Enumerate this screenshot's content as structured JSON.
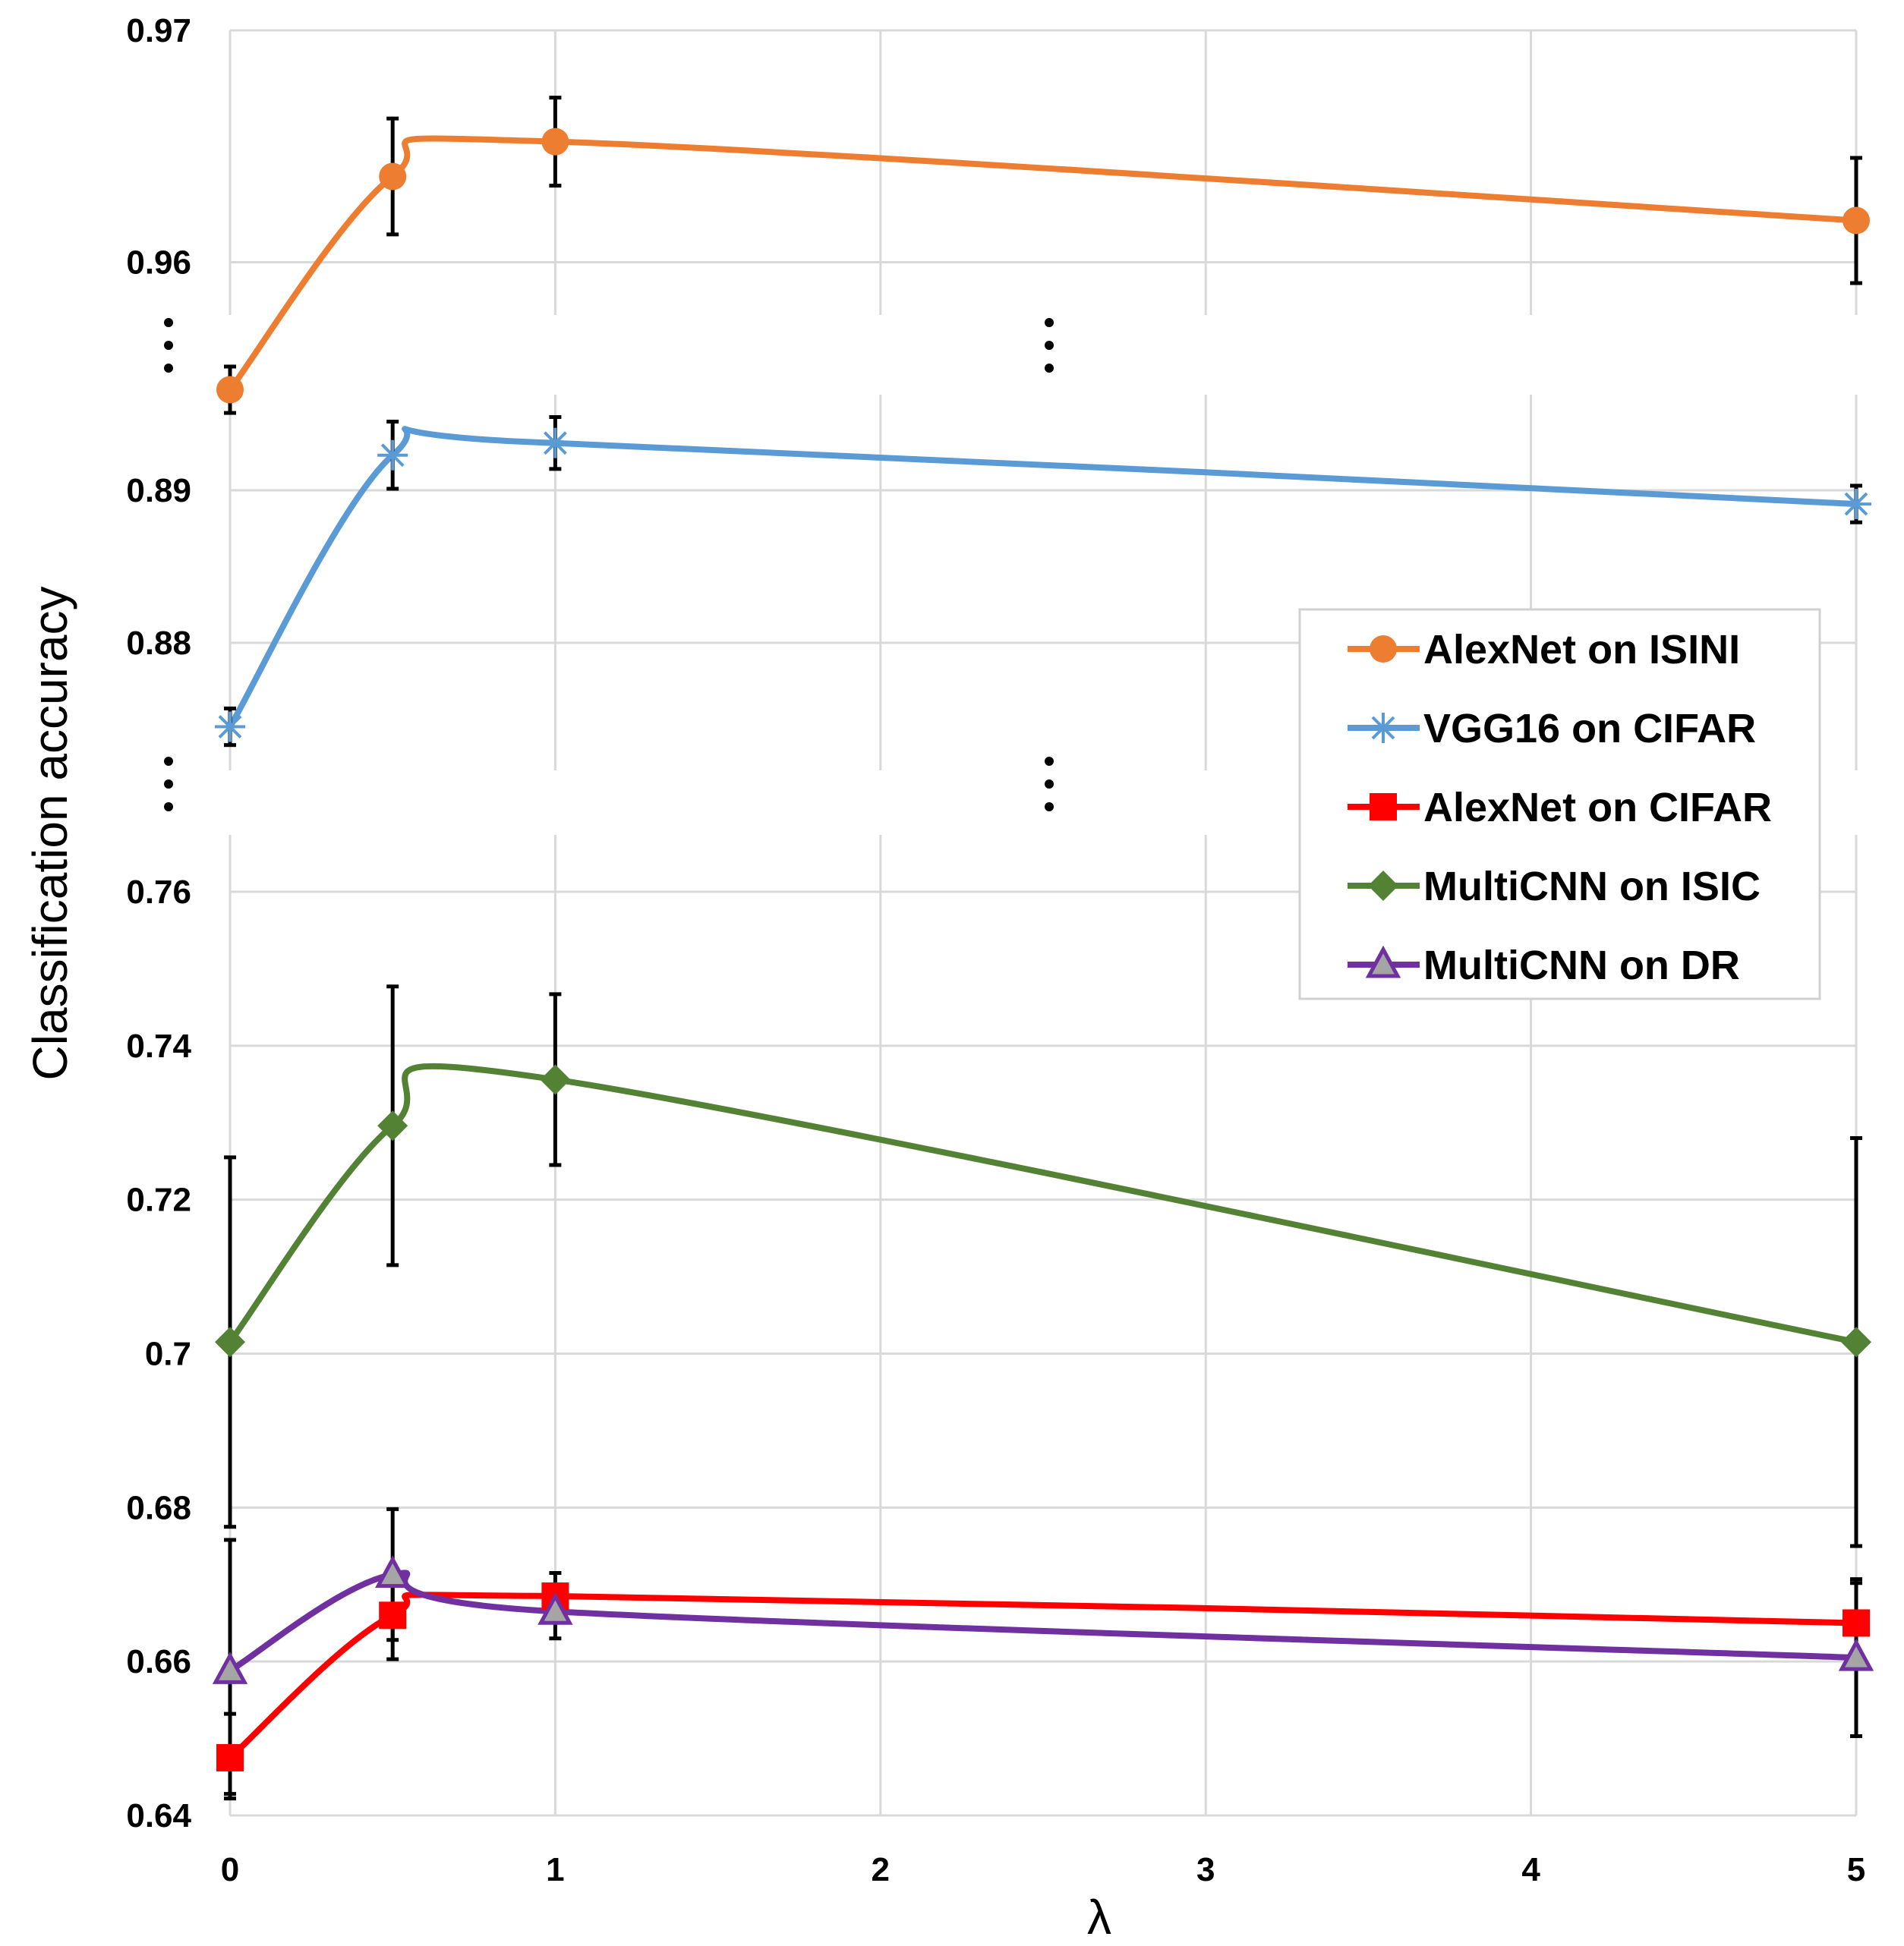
{
  "chart_data": {
    "type": "line",
    "xlabel": "λ",
    "ylabel": "Classification accuracy",
    "x": [
      0,
      0.5,
      1,
      5
    ],
    "x_ticks": [
      "0",
      "1",
      "2",
      "3",
      "4",
      "5"
    ],
    "xlim": [
      0,
      5
    ],
    "grid": true,
    "legend_position": "right",
    "broken_axis": true,
    "panels": [
      {
        "ylim": [
          0.95,
          0.97
        ],
        "y_ticks": [
          "0.97",
          "0.96"
        ]
      },
      {
        "ylim": [
          0.874,
          0.895
        ],
        "y_ticks": [
          "0.89",
          "0.88"
        ]
      },
      {
        "ylim": [
          0.64,
          0.766
        ],
        "y_ticks": [
          "0.76",
          "0.74",
          "0.72",
          "0.7",
          "0.68",
          "0.66",
          "0.64"
        ]
      }
    ],
    "series": [
      {
        "name": "AlexNet on ISINI",
        "panel": 0,
        "color": "#ED7D31",
        "marker": "circle",
        "values": [
          0.9545,
          0.9637,
          0.9652,
          0.9618
        ],
        "err_low": [
          0.9535,
          0.9612,
          0.9633,
          0.9591
        ],
        "err_high": [
          0.9555,
          0.9662,
          0.9671,
          0.9645
        ]
      },
      {
        "name": "VGG16 on CIFAR",
        "panel": 1,
        "color": "#5B9BD5",
        "marker": "asterisk",
        "values": [
          0.8745,
          0.8923,
          0.8931,
          0.8891
        ],
        "err_low": [
          0.8733,
          0.8901,
          0.8914,
          0.8879
        ],
        "err_high": [
          0.8757,
          0.8945,
          0.8948,
          0.8903
        ]
      },
      {
        "name": "AlexNet on CIFAR",
        "panel": 2,
        "color": "#FF0000",
        "marker": "square",
        "values": [
          0.6475,
          0.666,
          0.6685,
          0.665
        ],
        "err_low": [
          0.6422,
          0.6603,
          0.6655,
          0.6596
        ],
        "err_high": [
          0.6532,
          0.6717,
          0.6715,
          0.6702
        ]
      },
      {
        "name": "MultiCNN on ISIC",
        "panel": 2,
        "color": "#548235",
        "marker": "diamond",
        "values": [
          0.7015,
          0.7296,
          0.7356,
          0.7015
        ],
        "err_low": [
          0.6775,
          0.7115,
          0.7245,
          0.675
        ],
        "err_high": [
          0.7255,
          0.7477,
          0.7467,
          0.728
        ]
      },
      {
        "name": "MultiCNN on DR",
        "panel": 2,
        "color": "#7030A0",
        "marker": "triangle",
        "values": [
          0.6588,
          0.6713,
          0.6665,
          0.6605
        ],
        "err_low": [
          0.6428,
          0.6628,
          0.663,
          0.6503
        ],
        "err_high": [
          0.6758,
          0.6798,
          0.67,
          0.6707
        ]
      }
    ]
  }
}
